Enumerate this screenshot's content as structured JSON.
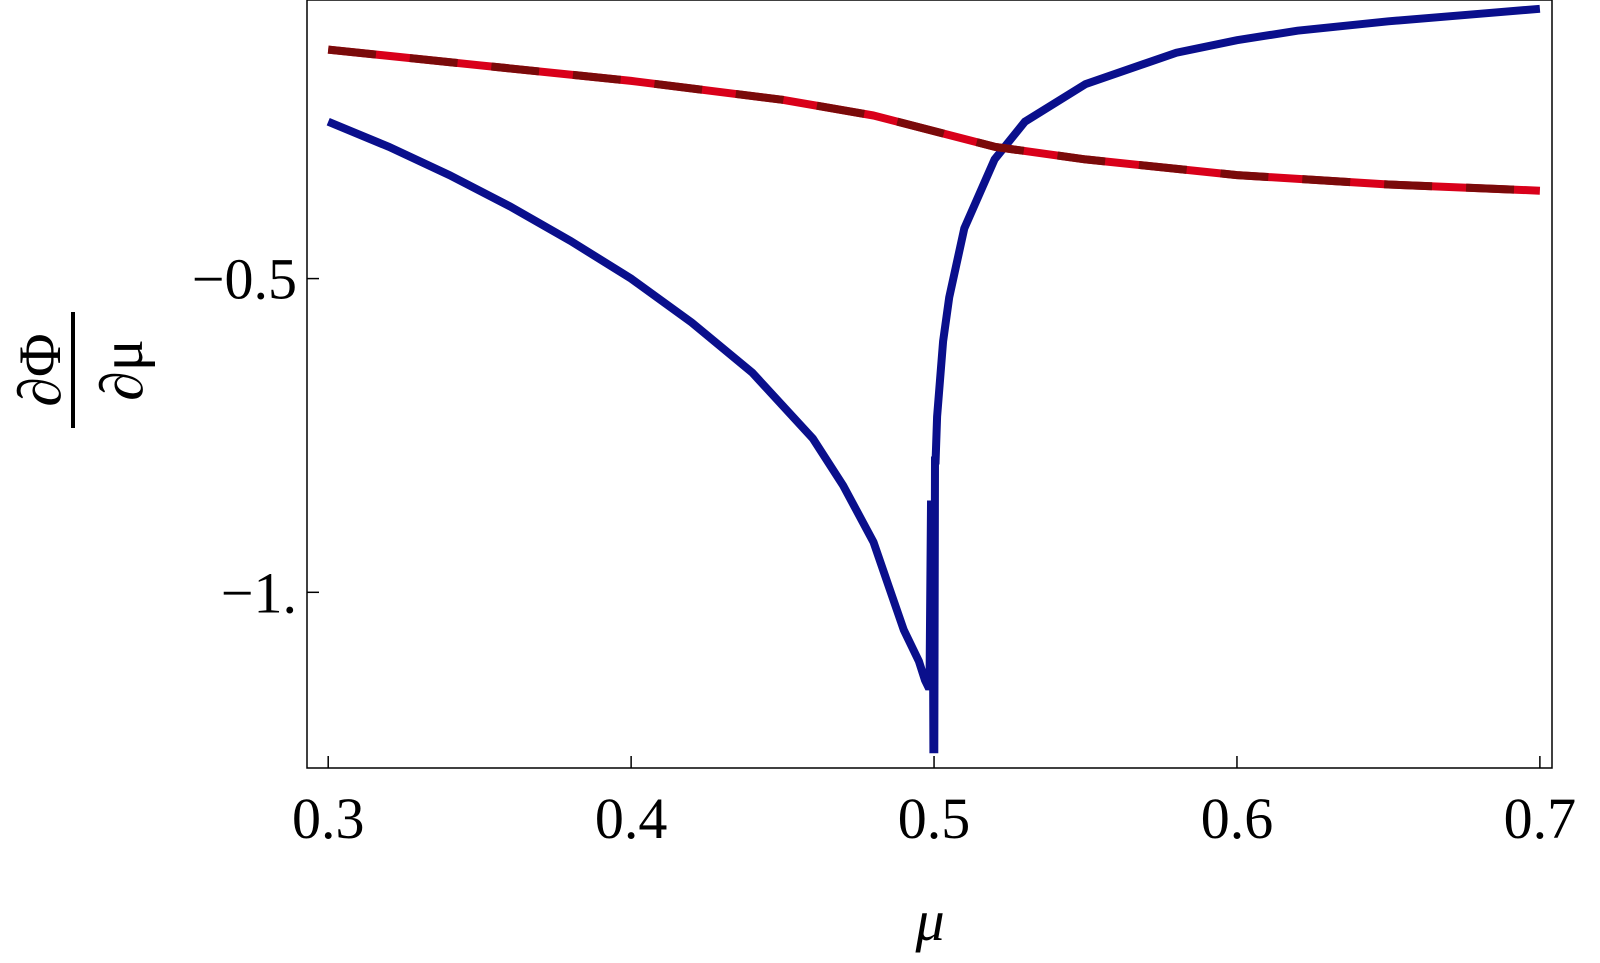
{
  "chart_data": {
    "type": "line",
    "title": "",
    "xlabel": "μ",
    "ylabel": {
      "numerator": "∂Φ",
      "denominator": "∂μ"
    },
    "xlim": [
      0.293,
      0.704
    ],
    "ylim": [
      -1.28,
      -0.056
    ],
    "x_ticks": [
      {
        "value": 0.3,
        "label": "0.3"
      },
      {
        "value": 0.4,
        "label": "0.4"
      },
      {
        "value": 0.5,
        "label": "0.5"
      },
      {
        "value": 0.6,
        "label": "0.6"
      },
      {
        "value": 0.7,
        "label": "0.7"
      }
    ],
    "y_ticks": [
      {
        "value": -0.5,
        "label": "−0.5"
      },
      {
        "value": -1.0,
        "label": "−1."
      }
    ],
    "grid": false,
    "series": [
      {
        "color": "#0a0f8c",
        "style": "solid",
        "x": [
          0.3,
          0.32,
          0.34,
          0.36,
          0.38,
          0.4,
          0.42,
          0.44,
          0.46,
          0.47,
          0.48,
          0.485,
          0.49,
          0.495,
          0.497,
          0.498,
          0.4985,
          0.499,
          0.4995,
          0.4998,
          0.5001,
          0.5003,
          0.5005,
          0.501,
          0.503,
          0.505,
          0.51,
          0.52,
          0.53,
          0.55,
          0.58,
          0.6,
          0.62,
          0.65,
          0.68,
          0.7
        ],
        "y": [
          -0.25,
          -0.29,
          -0.335,
          -0.385,
          -0.44,
          -0.5,
          -0.57,
          -0.65,
          -0.755,
          -0.83,
          -0.92,
          -0.99,
          -1.06,
          -1.11,
          -1.14,
          -1.15,
          -1.15,
          -0.86,
          -0.86,
          -1.25,
          -1.25,
          -0.79,
          -0.79,
          -0.72,
          -0.6,
          -0.53,
          -0.42,
          -0.31,
          -0.25,
          -0.19,
          -0.14,
          -0.12,
          -0.105,
          -0.09,
          -0.078,
          -0.07
        ]
      },
      {
        "color": "#d9001a",
        "accent_color": "#7a0a0a",
        "style": "dashed-two-tone",
        "x": [
          0.3,
          0.35,
          0.4,
          0.45,
          0.48,
          0.5,
          0.52,
          0.55,
          0.6,
          0.65,
          0.7
        ],
        "y": [
          -0.135,
          -0.16,
          -0.185,
          -0.215,
          -0.24,
          -0.265,
          -0.29,
          -0.31,
          -0.335,
          -0.35,
          -0.36
        ]
      }
    ]
  }
}
